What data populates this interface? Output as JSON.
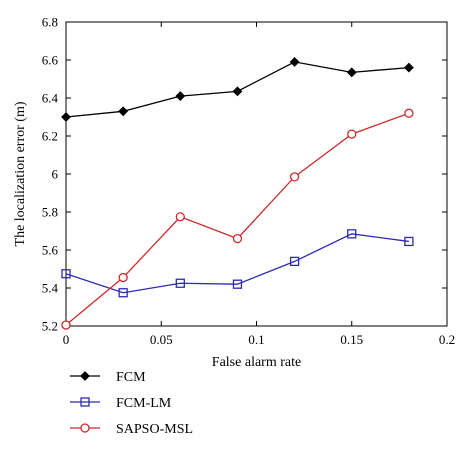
{
  "chart_data": {
    "type": "line",
    "title": "",
    "xlabel": "False alarm rate",
    "ylabel": "The localization error (m)",
    "xlim": [
      0,
      0.2
    ],
    "ylim": [
      5.2,
      6.8
    ],
    "x_ticks": [
      0,
      0.05,
      0.1,
      0.15,
      0.2
    ],
    "x_tick_labels": [
      "0",
      "0.05",
      "0.1",
      "0.15",
      "0.2"
    ],
    "y_ticks": [
      5.2,
      5.4,
      5.6,
      5.8,
      6.0,
      6.2,
      6.4,
      6.6,
      6.8
    ],
    "y_tick_labels": [
      "5.2",
      "5.4",
      "5.6",
      "5.8",
      "6",
      "6.2",
      "6.4",
      "6.6",
      "6.8"
    ],
    "grid": false,
    "legend_position": "bottom-left, below plot",
    "x": [
      0,
      0.03,
      0.06,
      0.09,
      0.12,
      0.15,
      0.18
    ],
    "series": [
      {
        "name": "FCM",
        "color": "#000000",
        "marker": "diamond",
        "values": [
          6.3,
          6.33,
          6.41,
          6.435,
          6.59,
          6.535,
          6.56
        ]
      },
      {
        "name": "FCM-LM",
        "color": "#2b2bb3",
        "marker": "square",
        "values": [
          5.475,
          5.375,
          5.425,
          5.42,
          5.54,
          5.685,
          5.645
        ]
      },
      {
        "name": "SAPSO-MSL",
        "color": "#cc2a2a",
        "marker": "circle",
        "values": [
          5.205,
          5.455,
          5.775,
          5.66,
          5.985,
          6.21,
          6.32
        ]
      }
    ]
  }
}
